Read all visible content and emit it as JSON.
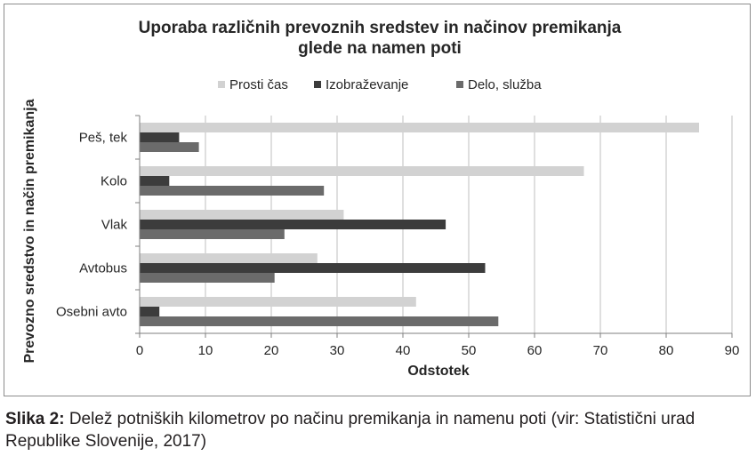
{
  "chart_data": {
    "type": "bar",
    "orientation": "horizontal",
    "title": "Uporaba različnih prevoznih sredstev in načinov premikanja glede na namen poti",
    "title_lines": [
      "Uporaba različnih prevoznih sredstev in načinov premikanja",
      "glede na namen poti"
    ],
    "xlabel": "Odstotek",
    "ylabel": "Prevozno sredstvo in način premikanja",
    "categories": [
      "Peš, tek",
      "Kolo",
      "Vlak",
      "Avtobus",
      "Osebni avto"
    ],
    "series": [
      {
        "name": "Prosti čas",
        "color": "#d2d2d2",
        "values": [
          85,
          67.5,
          31,
          27,
          42
        ]
      },
      {
        "name": "Izobraževanje",
        "color": "#3c3c3c",
        "values": [
          6,
          4.5,
          46.5,
          52.5,
          3
        ]
      },
      {
        "name": "Delo, služba",
        "color": "#6b6b6b",
        "values": [
          9,
          28,
          22,
          20.5,
          54.5
        ]
      }
    ],
    "xlim": [
      0,
      90
    ],
    "xticks": [
      "0",
      "10",
      "20",
      "30",
      "40",
      "50",
      "60",
      "70",
      "80",
      "90"
    ],
    "grid": true,
    "legend_position": "top"
  },
  "caption": {
    "label": "Slika 2:",
    "text": " Delež potniških kilometrov po načinu premikanja in namenu poti (vir: Statistični urad Republike Slovenije, 2017)"
  }
}
